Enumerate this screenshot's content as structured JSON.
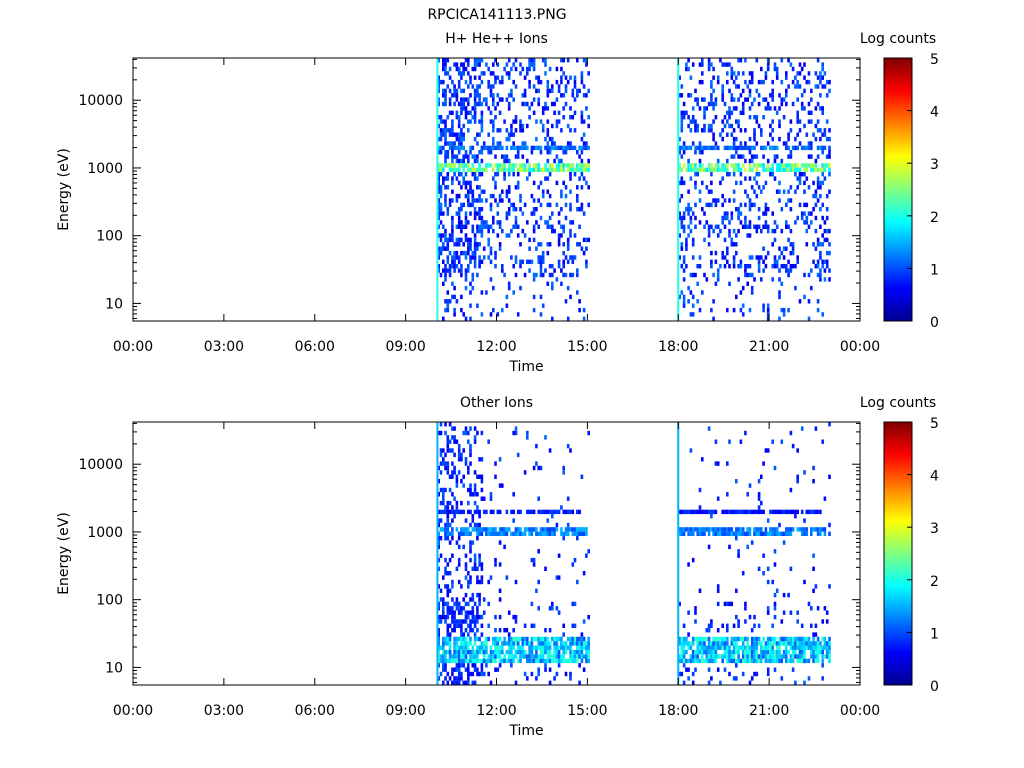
{
  "figure_title": "RPCICA141113.PNG",
  "chart_data": [
    {
      "type": "heatmap",
      "title": "H+ He++ Ions",
      "xlabel": "Time",
      "ylabel": "Energy (eV)",
      "x_ticks": [
        "00:00",
        "03:00",
        "06:00",
        "09:00",
        "12:00",
        "15:00",
        "18:00",
        "21:00",
        "00:00"
      ],
      "x_range_hours": [
        0,
        24
      ],
      "y_scale": "log",
      "y_ticks": [
        10,
        100,
        1000,
        10000
      ],
      "y_tick_labels": [
        "10",
        "100",
        "1000",
        "10000"
      ],
      "y_range_eV": [
        5.5,
        42000
      ],
      "colorbar": {
        "label": "Log counts",
        "range": [
          0,
          5
        ],
        "ticks": [
          "0",
          "1",
          "2",
          "3",
          "4",
          "5"
        ]
      },
      "data_intervals_hours": [
        [
          10.05,
          15.0
        ],
        [
          18.0,
          23.0
        ]
      ],
      "features": [
        {
          "hour": 10.05,
          "description": "vertical line",
          "log_counts": 2
        },
        {
          "hour": 18.0,
          "description": "vertical line",
          "log_counts": 2
        },
        {
          "energy_eV": 1000,
          "description": "band",
          "log_counts": 2.5
        },
        {
          "energy_eV": 2000,
          "description": "band",
          "log_counts": 1.2
        }
      ]
    },
    {
      "type": "heatmap",
      "title": "Other Ions",
      "xlabel": "Time",
      "ylabel": "Energy (eV)",
      "x_ticks": [
        "00:00",
        "03:00",
        "06:00",
        "09:00",
        "12:00",
        "15:00",
        "18:00",
        "21:00",
        "00:00"
      ],
      "x_range_hours": [
        0,
        24
      ],
      "y_scale": "log",
      "y_ticks": [
        10,
        100,
        1000,
        10000
      ],
      "y_tick_labels": [
        "10",
        "100",
        "1000",
        "10000"
      ],
      "y_range_eV": [
        5.5,
        42000
      ],
      "colorbar": {
        "label": "Log counts",
        "range": [
          0,
          5
        ],
        "ticks": [
          "0",
          "1",
          "2",
          "3",
          "4",
          "5"
        ]
      },
      "data_intervals_hours": [
        [
          10.05,
          15.0
        ],
        [
          18.0,
          23.0
        ]
      ],
      "features": [
        {
          "hour": 10.05,
          "description": "vertical line",
          "log_counts": 1.5
        },
        {
          "hour": 18.0,
          "description": "vertical line",
          "log_counts": 1.5
        },
        {
          "energy_eV": 20,
          "description": "low-energy band",
          "log_counts": 1.8
        },
        {
          "energy_eV": 1000,
          "description": "band",
          "log_counts": 1.3
        },
        {
          "energy_eV": 2000,
          "description": "band",
          "log_counts": 0.8
        }
      ]
    }
  ]
}
